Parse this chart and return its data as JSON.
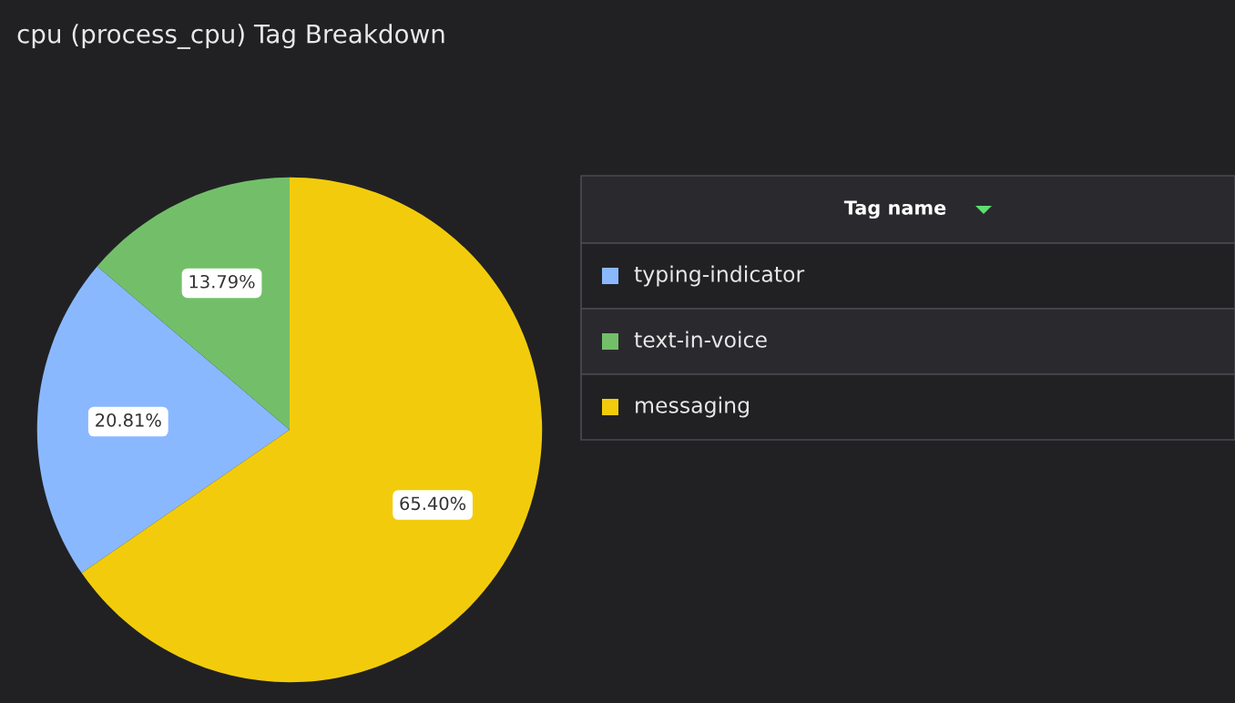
{
  "chart_data": {
    "type": "pie",
    "title": "cpu (process_cpu) Tag Breakdown",
    "legend_title": "Tag name",
    "legend": "right",
    "categories": [
      "typing-indicator",
      "text-in-voice",
      "messaging"
    ],
    "values": [
      20.81,
      13.79,
      65.4
    ],
    "colors": [
      "#8ab8ff",
      "#73bf69",
      "#f2cc0c"
    ],
    "value_labels": [
      "20.81%",
      "13.79%",
      "65.40%"
    ]
  }
}
